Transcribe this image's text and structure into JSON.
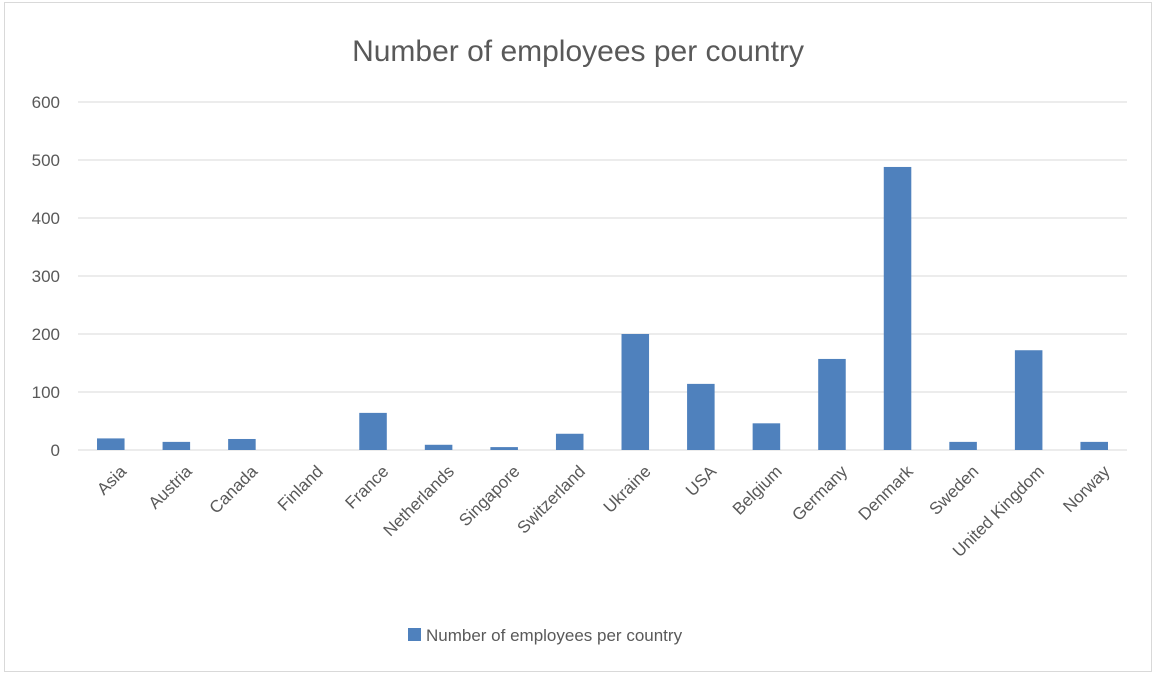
{
  "chart_data": {
    "type": "bar",
    "title": "Number of employees per country",
    "categories": [
      "Asia",
      "Austria",
      "Canada",
      "Finland",
      "France",
      "Netherlands",
      "Singapore",
      "Switzerland",
      "Ukraine",
      "USA",
      "Belgium",
      "Germany",
      "Denmark",
      "Sweden",
      "United Kingdom",
      "Norway"
    ],
    "series": [
      {
        "name": "Number of employees per country",
        "color": "#4f81bd",
        "values": [
          20,
          14,
          19,
          0,
          64,
          9,
          5,
          28,
          200,
          114,
          46,
          157,
          488,
          14,
          172,
          14
        ]
      }
    ],
    "ylim": [
      0,
      600
    ],
    "yticks": [
      0,
      100,
      200,
      300,
      400,
      500,
      600
    ],
    "xlabel": "",
    "ylabel": "",
    "grid": true,
    "legend_position": "bottom"
  }
}
